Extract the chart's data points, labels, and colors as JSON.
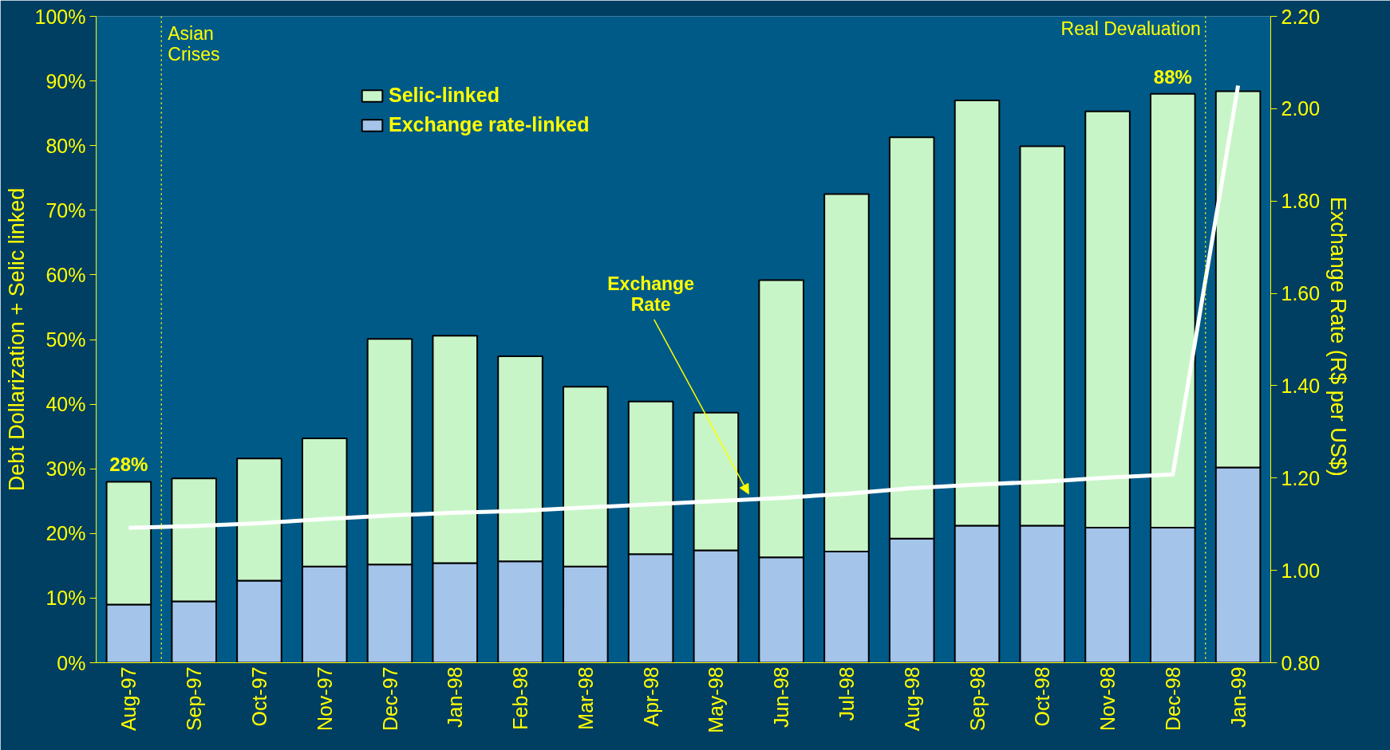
{
  "chart_data": {
    "type": "bar",
    "stacked": true,
    "categories": [
      "Aug-97",
      "Sep-97",
      "Oct-97",
      "Nov-97",
      "Dec-97",
      "Jan-98",
      "Feb-98",
      "Mar-98",
      "Apr-98",
      "May-98",
      "Jun-98",
      "Jul-98",
      "Aug-98",
      "Sep-98",
      "Oct-98",
      "Nov-98",
      "Dec-98",
      "Jan-99"
    ],
    "ylabel": "Debt Dollarization + Selic linked",
    "y2label": "Exchange Rate  (R$ per US$)",
    "series": [
      {
        "name": "Exchange rate-linked",
        "color": "#a4c4ea",
        "values": [
          9.0,
          9.5,
          12.7,
          14.9,
          15.2,
          15.4,
          15.7,
          14.9,
          16.8,
          17.4,
          16.3,
          17.2,
          19.2,
          21.2,
          21.2,
          20.9,
          20.9,
          30.2
        ]
      },
      {
        "name": "Selic-linked",
        "color": "#c8f5c8",
        "values": [
          19.0,
          19.0,
          18.9,
          19.8,
          34.9,
          35.2,
          31.7,
          27.8,
          23.6,
          21.3,
          42.9,
          55.3,
          62.1,
          65.8,
          58.7,
          64.4,
          67.1,
          58.2
        ]
      },
      {
        "type": "line",
        "axis": "y2",
        "color": "#ffffff",
        "values": [
          1.092,
          1.096,
          1.102,
          1.111,
          1.119,
          1.125,
          1.129,
          1.136,
          1.143,
          1.15,
          1.157,
          1.166,
          1.178,
          1.186,
          1.192,
          1.201,
          1.208,
          2.05
        ]
      }
    ],
    "totals": [
      "28%",
      null,
      null,
      null,
      null,
      null,
      null,
      null,
      null,
      null,
      null,
      null,
      null,
      null,
      null,
      null,
      "88%",
      null
    ],
    "ylim": [
      0,
      100
    ],
    "yticks": [
      {
        "value": 0,
        "label": "0%"
      },
      {
        "value": 10,
        "label": "10%"
      },
      {
        "value": 20,
        "label": "20%"
      },
      {
        "value": 30,
        "label": "30%"
      },
      {
        "value": 40,
        "label": "40%"
      },
      {
        "value": 50,
        "label": "50%"
      },
      {
        "value": 60,
        "label": "60%"
      },
      {
        "value": 70,
        "label": "70%"
      },
      {
        "value": 80,
        "label": "80%"
      },
      {
        "value": 90,
        "label": "90%"
      },
      {
        "value": 100,
        "label": "100%"
      }
    ],
    "y2lim": [
      0.8,
      2.2
    ],
    "y2ticks": [
      {
        "value": 0.8,
        "label": "0.80"
      },
      {
        "value": 1.0,
        "label": "1.00"
      },
      {
        "value": 1.2,
        "label": "1.20"
      },
      {
        "value": 1.4,
        "label": "1.40"
      },
      {
        "value": 1.6,
        "label": "1.60"
      },
      {
        "value": 1.8,
        "label": "1.80"
      },
      {
        "value": 2.0,
        "label": "2.00"
      },
      {
        "value": 2.2,
        "label": "2.20"
      }
    ],
    "annotations": [
      "Asian\nCrises",
      "Real Devaluation",
      "Exchange\nRate"
    ],
    "legend": "top left",
    "grid": false
  }
}
